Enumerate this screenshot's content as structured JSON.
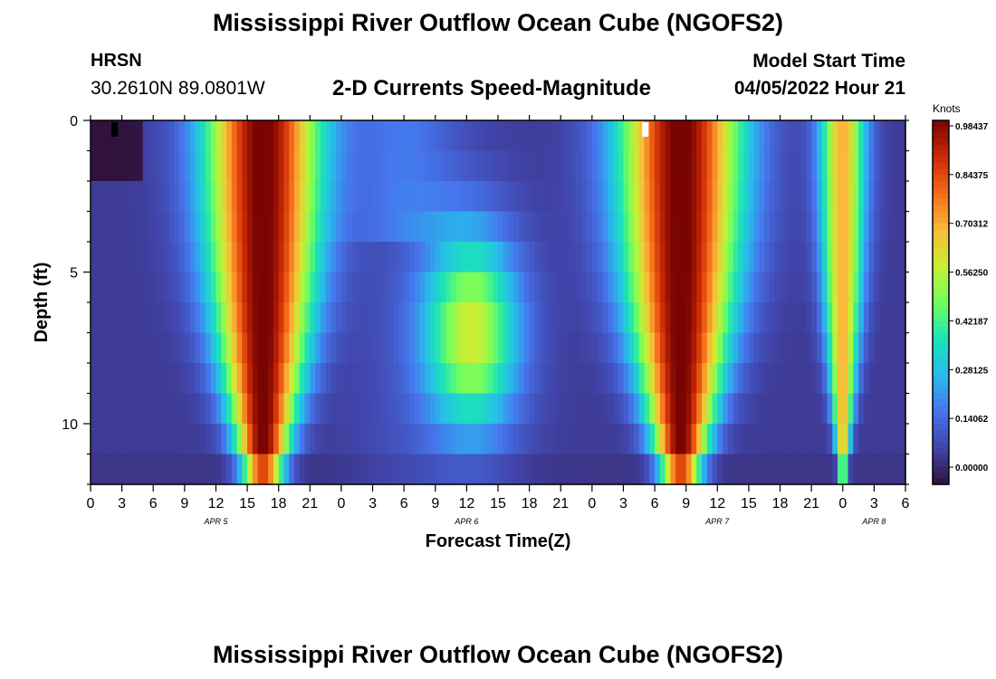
{
  "header": {
    "title": "Mississippi River Outflow Ocean Cube (NGOFS2)",
    "station": "HRSN",
    "coords": "30.2610N  89.0801W",
    "variable": "2-D Currents Speed-Magnitude",
    "model_start_label": "Model Start Time",
    "model_start_value": "04/05/2022 Hour 21"
  },
  "footer": {
    "title": "Mississippi River Outflow Ocean Cube (NGOFS2)"
  },
  "chart_data": {
    "type": "heatmap",
    "title": "2-D Currents Speed-Magnitude",
    "xlabel": "Forecast Time(Z)",
    "ylabel": "Depth (ft)",
    "xlim": [
      0,
      78
    ],
    "ylim": [
      0,
      12
    ],
    "x_tick_labels": [
      "0",
      "3",
      "6",
      "9",
      "12",
      "15",
      "18",
      "21",
      "0",
      "3",
      "6",
      "9",
      "12",
      "15",
      "18",
      "21",
      "0",
      "3",
      "6",
      "9",
      "12",
      "15",
      "18",
      "21",
      "0",
      "3",
      "6"
    ],
    "y_ticks": [
      0,
      5,
      10
    ],
    "date_labels": [
      {
        "label": "APR 5",
        "hour": 12
      },
      {
        "label": "APR 6",
        "hour": 36
      },
      {
        "label": "APR 7",
        "hour": 60
      },
      {
        "label": "APR 8",
        "hour": 75
      }
    ],
    "colorbar": {
      "label": "Knots",
      "min": 0.0,
      "max": 0.98437,
      "tick_labels": [
        "0.98437",
        "0.84375",
        "0.70312",
        "0.56250",
        "0.42187",
        "0.28125",
        "0.14062",
        "0.00000"
      ],
      "tick_values": [
        0.98437,
        0.84375,
        0.70312,
        0.5625,
        0.42187,
        0.28125,
        0.14062,
        0.0
      ]
    },
    "depth_levels_ft": [
      0,
      1,
      2,
      3,
      4,
      5,
      6,
      7,
      8,
      9,
      10,
      11,
      12
    ],
    "speed_summary": "Speed (knots) by depth vs forecast hour; peaks ~0.98 near surface around hours 12-21 and 51-60, minima near 0 at hours 0-3 and 30-33"
  }
}
